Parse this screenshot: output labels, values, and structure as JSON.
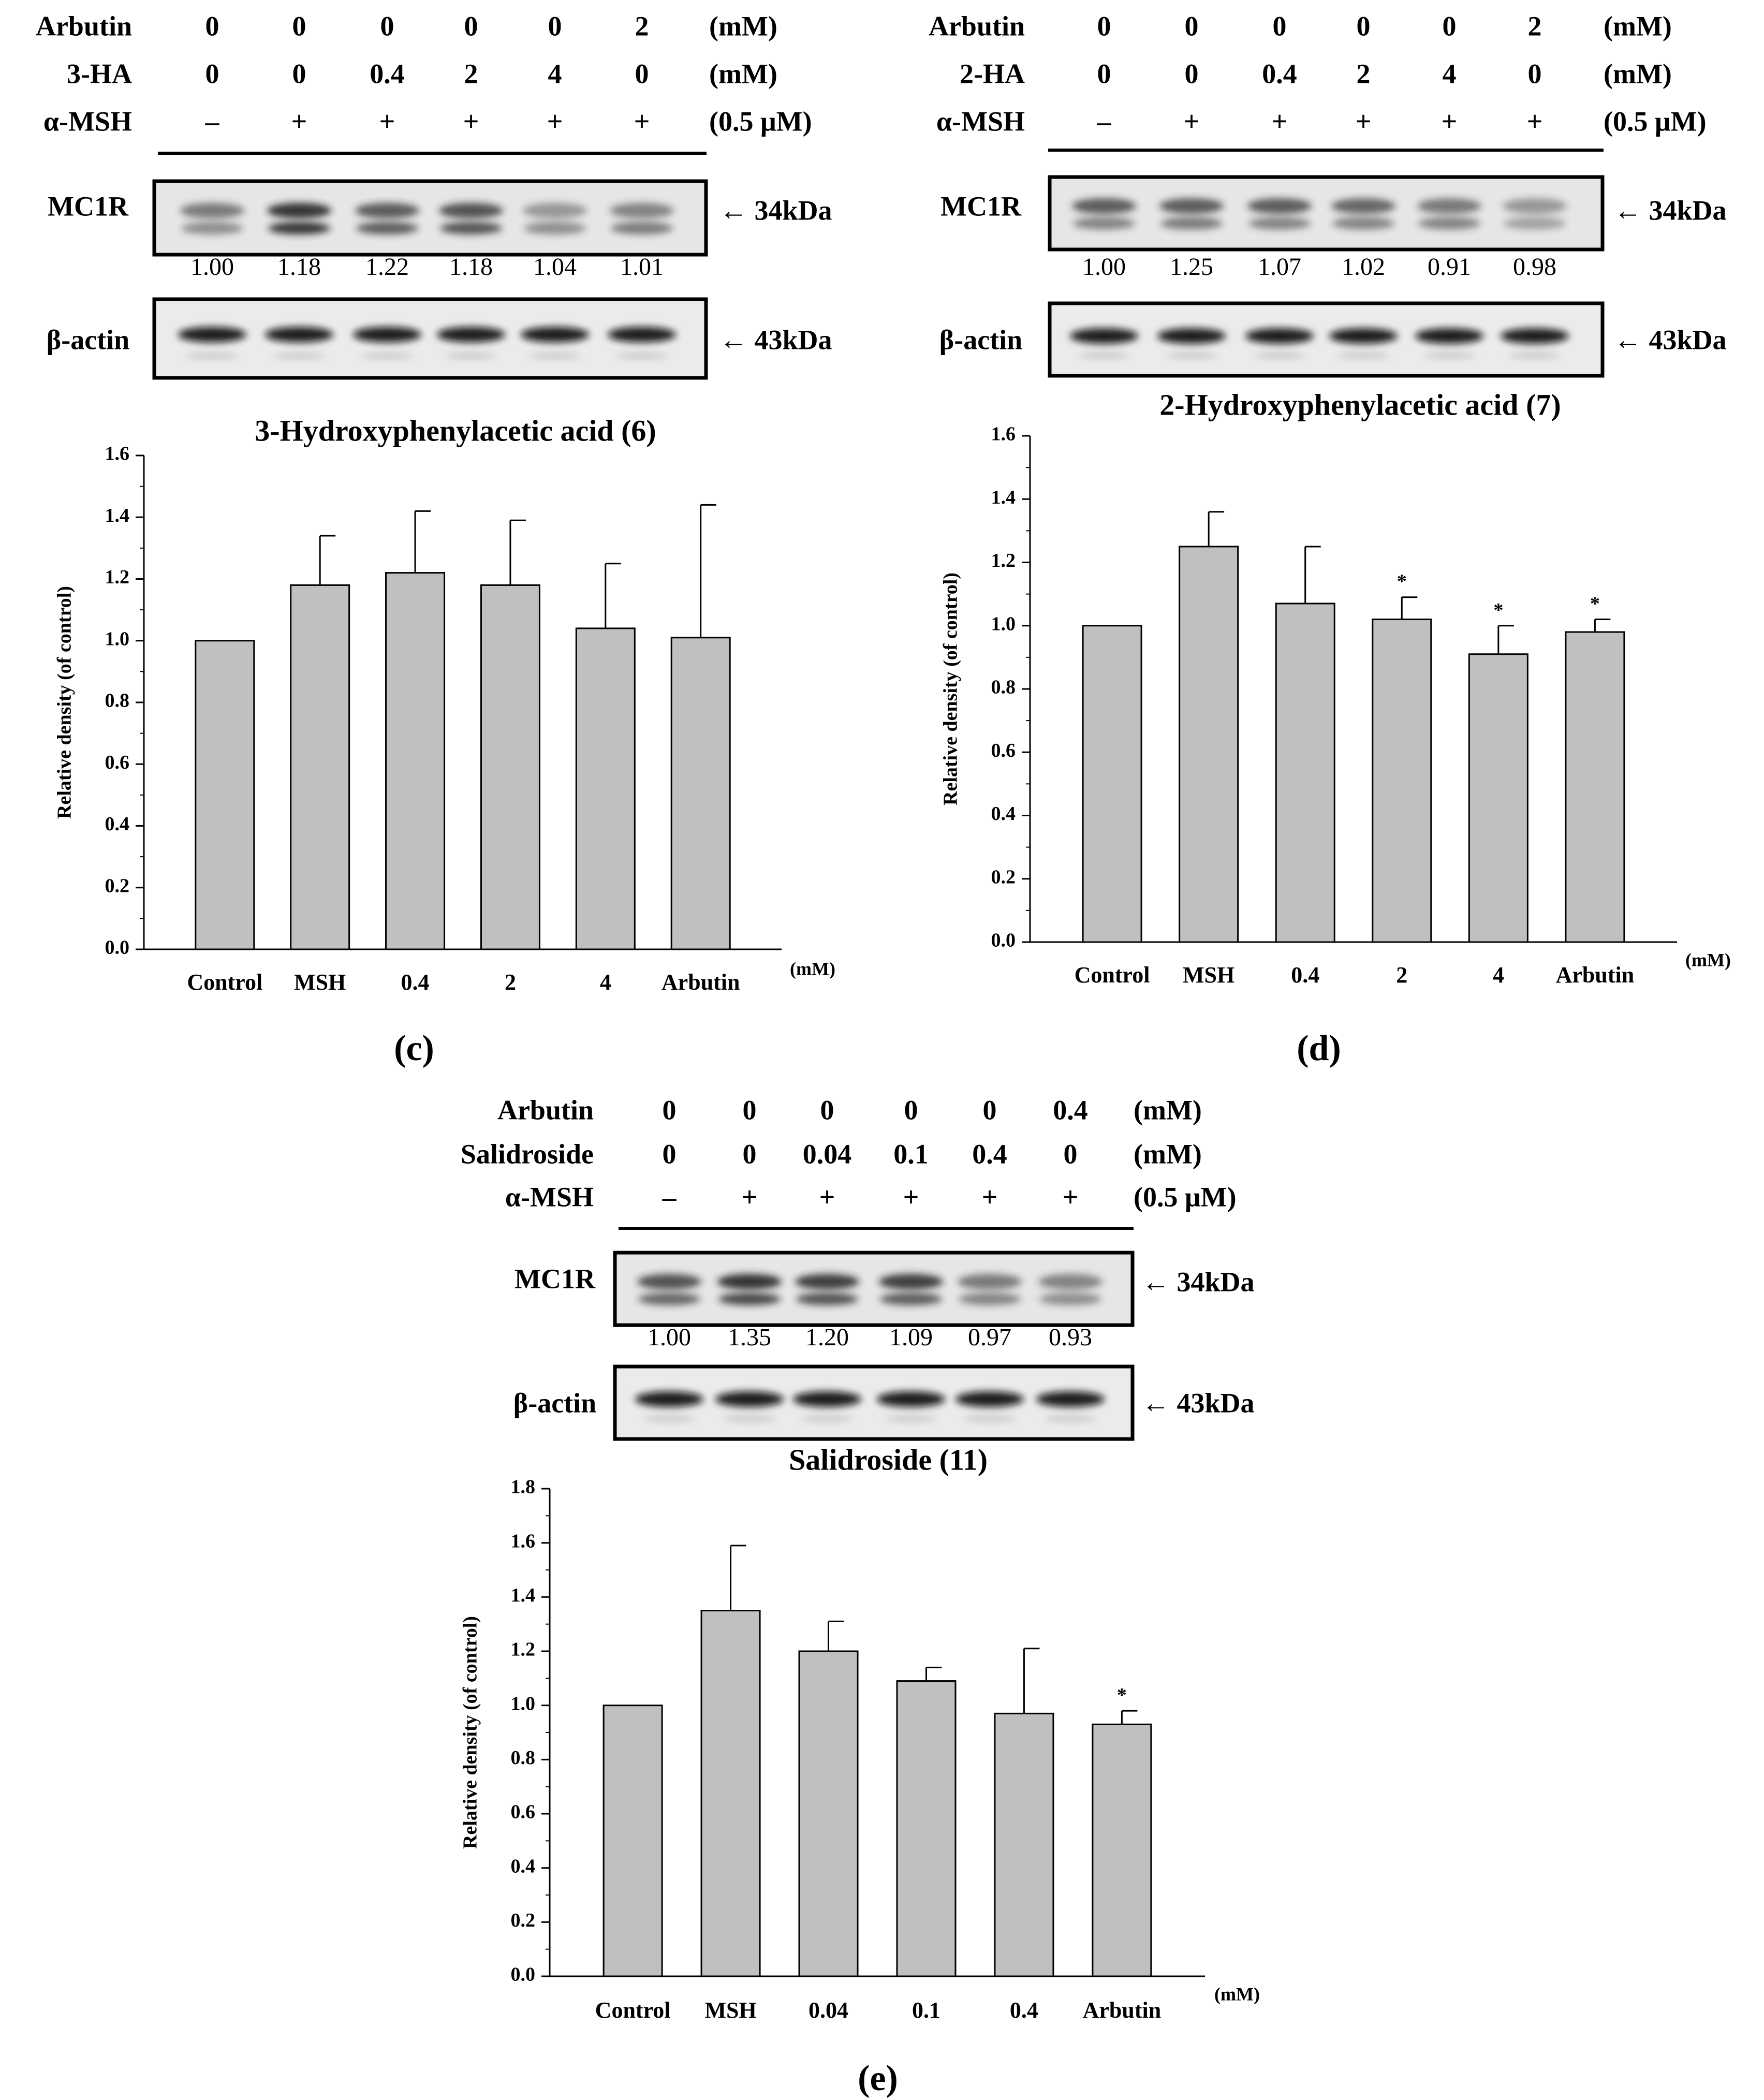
{
  "panels": [
    {
      "letter_text": "(c)",
      "letter": "c",
      "blot": {
        "rows": [
          {
            "name": "Arbutin",
            "values": [
              "0",
              "0",
              "0",
              "0",
              "0",
              "2"
            ],
            "unit": "(mM)"
          },
          {
            "name": "3-HA",
            "values": [
              "0",
              "0",
              "0.4",
              "2",
              "4",
              "0"
            ],
            "unit": "(mM)"
          },
          {
            "name": "α-MSH",
            "values": [
              "–",
              "+",
              "+",
              "+",
              "+",
              "+"
            ],
            "unit": "(0.5 μM)"
          }
        ],
        "mc1r_label": "MC1R",
        "mc1r_marker": "← 34kDa",
        "quant": [
          "1.00",
          "1.18",
          "1.22",
          "1.18",
          "1.04",
          "1.01"
        ],
        "actin_label": "β-actin",
        "actin_marker": "← 43kDa"
      },
      "title": "3-Hydroxyphenylacetic acid (6)",
      "unit_label": "(mM)"
    },
    {
      "letter_text": "(d)",
      "letter": "d",
      "blot": {
        "rows": [
          {
            "name": "Arbutin",
            "values": [
              "0",
              "0",
              "0",
              "0",
              "0",
              "2"
            ],
            "unit": "(mM)"
          },
          {
            "name": "2-HA",
            "values": [
              "0",
              "0",
              "0.4",
              "2",
              "4",
              "0"
            ],
            "unit": "(mM)"
          },
          {
            "name": "α-MSH",
            "values": [
              "–",
              "+",
              "+",
              "+",
              "+",
              "+"
            ],
            "unit": "(0.5 μM)"
          }
        ],
        "mc1r_label": "MC1R",
        "mc1r_marker": "← 34kDa",
        "quant": [
          "1.00",
          "1.25",
          "1.07",
          "1.02",
          "0.91",
          "0.98"
        ],
        "actin_label": "β-actin",
        "actin_marker": "← 43kDa"
      },
      "title": "2-Hydroxyphenylacetic acid (7)",
      "unit_label": "(mM)"
    },
    {
      "letter_text": "(e)",
      "letter": "e",
      "blot": {
        "rows": [
          {
            "name": "Arbutin",
            "values": [
              "0",
              "0",
              "0",
              "0",
              "0",
              "0.4"
            ],
            "unit": "(mM)"
          },
          {
            "name": "Salidroside",
            "values": [
              "0",
              "0",
              "0.04",
              "0.1",
              "0.4",
              "0"
            ],
            "unit": "(mM)"
          },
          {
            "name": "α-MSH",
            "values": [
              "–",
              "+",
              "+",
              "+",
              "+",
              "+"
            ],
            "unit": "(0.5 μM)"
          }
        ],
        "mc1r_label": "MC1R",
        "mc1r_marker": "← 34kDa",
        "quant": [
          "1.00",
          "1.35",
          "1.20",
          "1.09",
          "0.97",
          "0.93"
        ],
        "actin_label": "β-actin",
        "actin_marker": "← 43kDa"
      },
      "title": "Salidroside (11)",
      "unit_label": "(mM)"
    }
  ],
  "chart_data": [
    {
      "type": "bar",
      "panel": "c",
      "title": "3-Hydroxyphenylacetic acid (6)",
      "ylabel": "Relative density (of control)",
      "xlabel": "",
      "categories": [
        "Control",
        "MSH",
        "0.4",
        "2",
        "4",
        "Arbutin"
      ],
      "values": [
        1.0,
        1.18,
        1.22,
        1.18,
        1.04,
        1.01
      ],
      "errors": [
        0,
        0.16,
        0.2,
        0.21,
        0.21,
        0.43
      ],
      "significant": [
        false,
        false,
        false,
        false,
        false,
        false
      ],
      "ylim": [
        0,
        1.6
      ],
      "yticks": [
        "0.0",
        "0.2",
        "0.4",
        "0.6",
        "0.8",
        "1.0",
        "1.2",
        "1.4",
        "1.6"
      ],
      "bar_color": "#c0c0c0"
    },
    {
      "type": "bar",
      "panel": "d",
      "title": "2-Hydroxyphenylacetic acid (7)",
      "ylabel": "Relative density (of control)",
      "xlabel": "",
      "categories": [
        "Control",
        "MSH",
        "0.4",
        "2",
        "4",
        "Arbutin"
      ],
      "values": [
        1.0,
        1.25,
        1.07,
        1.02,
        0.91,
        0.98
      ],
      "errors": [
        0,
        0.11,
        0.18,
        0.07,
        0.09,
        0.04
      ],
      "significant": [
        false,
        false,
        false,
        true,
        true,
        true
      ],
      "ylim": [
        0,
        1.6
      ],
      "yticks": [
        "0.0",
        "0.2",
        "0.4",
        "0.6",
        "0.8",
        "1.0",
        "1.2",
        "1.4",
        "1.6"
      ],
      "bar_color": "#c0c0c0"
    },
    {
      "type": "bar",
      "panel": "e",
      "title": "Salidroside (11)",
      "ylabel": "Relative density (of control)",
      "xlabel": "",
      "categories": [
        "Control",
        "MSH",
        "0.04",
        "0.1",
        "0.4",
        "Arbutin"
      ],
      "values": [
        1.0,
        1.35,
        1.2,
        1.09,
        0.97,
        0.93
      ],
      "errors": [
        0,
        0.24,
        0.11,
        0.05,
        0.24,
        0.05
      ],
      "significant": [
        false,
        false,
        false,
        false,
        false,
        true
      ],
      "ylim": [
        0,
        1.8
      ],
      "yticks": [
        "0.0",
        "0.2",
        "0.4",
        "0.6",
        "0.8",
        "1.0",
        "1.2",
        "1.4",
        "1.6",
        "1.8"
      ],
      "bar_color": "#c0c0c0"
    }
  ]
}
